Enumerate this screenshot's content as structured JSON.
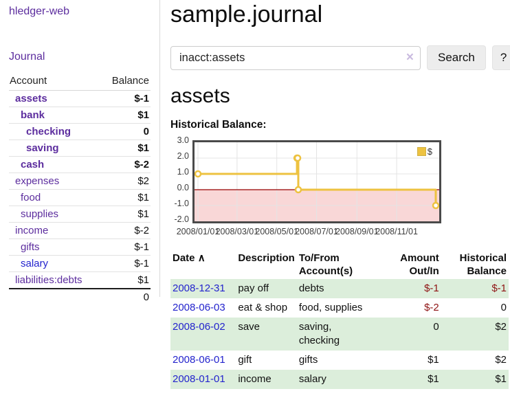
{
  "sidebar": {
    "app_title": "hledger-web",
    "journal_link": "Journal",
    "accounts": {
      "col_account": "Account",
      "col_balance": "Balance",
      "rows": [
        {
          "account": "assets",
          "indent": 1,
          "bold": true,
          "link_color": "purple",
          "balance": "$-1",
          "balance_tone": "negative-strong"
        },
        {
          "account": "bank",
          "indent": 2,
          "bold": true,
          "link_color": "purple",
          "balance": "$1",
          "balance_tone": "normal"
        },
        {
          "account": "checking",
          "indent": 3,
          "bold": true,
          "link_color": "purple",
          "balance": "0",
          "balance_tone": "normal"
        },
        {
          "account": "saving",
          "indent": 3,
          "bold": true,
          "link_color": "purple",
          "balance": "$1",
          "balance_tone": "normal"
        },
        {
          "account": "cash",
          "indent": 2,
          "bold": true,
          "link_color": "purple",
          "balance": "$-2",
          "balance_tone": "negative-strong"
        },
        {
          "account": "expenses",
          "indent": 1,
          "bold": false,
          "link_color": "purple",
          "balance": "$2",
          "balance_tone": "normal"
        },
        {
          "account": "food",
          "indent": 2,
          "bold": false,
          "link_color": "purple",
          "balance": "$1",
          "balance_tone": "normal"
        },
        {
          "account": "supplies",
          "indent": 2,
          "bold": false,
          "link_color": "purple",
          "balance": "$1",
          "balance_tone": "normal"
        },
        {
          "account": "income",
          "indent": 1,
          "bold": false,
          "link_color": "purple",
          "balance": "$-2",
          "balance_tone": "negative-soft"
        },
        {
          "account": "gifts",
          "indent": 2,
          "bold": false,
          "link_color": "purple",
          "balance": "$-1",
          "balance_tone": "negative-soft"
        },
        {
          "account": "salary",
          "indent": 2,
          "bold": false,
          "link_color": "blue",
          "balance": "$-1",
          "balance_tone": "negative-soft"
        },
        {
          "account": "liabilities:debts",
          "indent": 1,
          "bold": false,
          "link_color": "purple",
          "balance": "$1",
          "balance_tone": "normal"
        }
      ],
      "total": "0"
    }
  },
  "main": {
    "title": "sample.journal",
    "search": {
      "value": "inacct:assets",
      "clear_icon": "×",
      "button": "Search",
      "help_button": "?"
    },
    "account_heading": "assets",
    "chart_label": "Historical Balance:",
    "register": {
      "columns": [
        "Date",
        "Description",
        "To/From Account(s)",
        "Amount Out/In",
        "Historical Balance"
      ],
      "sort_icon": "∧",
      "rows": [
        {
          "date": "2008-12-31",
          "description": "pay off",
          "accounts": "debts",
          "amount": "$-1",
          "balance": "$-1"
        },
        {
          "date": "2008-06-03",
          "description": "eat & shop",
          "accounts": "food, supplies",
          "amount": "$-2",
          "balance": "0"
        },
        {
          "date": "2008-06-02",
          "description": "save",
          "accounts": "saving, checking",
          "amount": "0",
          "balance": "$2"
        },
        {
          "date": "2008-06-01",
          "description": "gift",
          "accounts": "gifts",
          "amount": "$1",
          "balance": "$2"
        },
        {
          "date": "2008-01-01",
          "description": "income",
          "accounts": "salary",
          "amount": "$1",
          "balance": "$1"
        }
      ]
    }
  },
  "chart_data": {
    "type": "line",
    "title": "Historical Balance:",
    "step": true,
    "series": [
      {
        "name": "$",
        "color": "#edc240",
        "points": [
          [
            "2008-01-01",
            1
          ],
          [
            "2008-06-01",
            2
          ],
          [
            "2008-06-02",
            2
          ],
          [
            "2008-06-03",
            0
          ],
          [
            "2008-12-31",
            -1
          ]
        ]
      }
    ],
    "xlim": [
      "2008-01-01",
      "2008-12-31"
    ],
    "ylim": [
      -2,
      3
    ],
    "y_ticks": [
      "3.0",
      "2.0",
      "1.0",
      "0.0",
      "-1.0",
      "-2.0"
    ],
    "x_ticks": [
      "2008/01/01",
      "2008/03/01",
      "2008/05/01",
      "2008/07/01",
      "2008/09/01",
      "2008/11/01"
    ],
    "legend": {
      "position": "top-right",
      "label": "$"
    },
    "grid": true,
    "grid_color": "#e4e4e4",
    "zero_line_color": "#970000",
    "negative_region_fill": "#f9d7d7",
    "plot_border_color": "#4a4a4a"
  },
  "colors": {
    "link_purple": "#5c2d9e",
    "link_blue": "#2323cd",
    "negative_strong": "#8e1313",
    "negative_soft": "#c38080",
    "row_green": "#dceedb"
  }
}
